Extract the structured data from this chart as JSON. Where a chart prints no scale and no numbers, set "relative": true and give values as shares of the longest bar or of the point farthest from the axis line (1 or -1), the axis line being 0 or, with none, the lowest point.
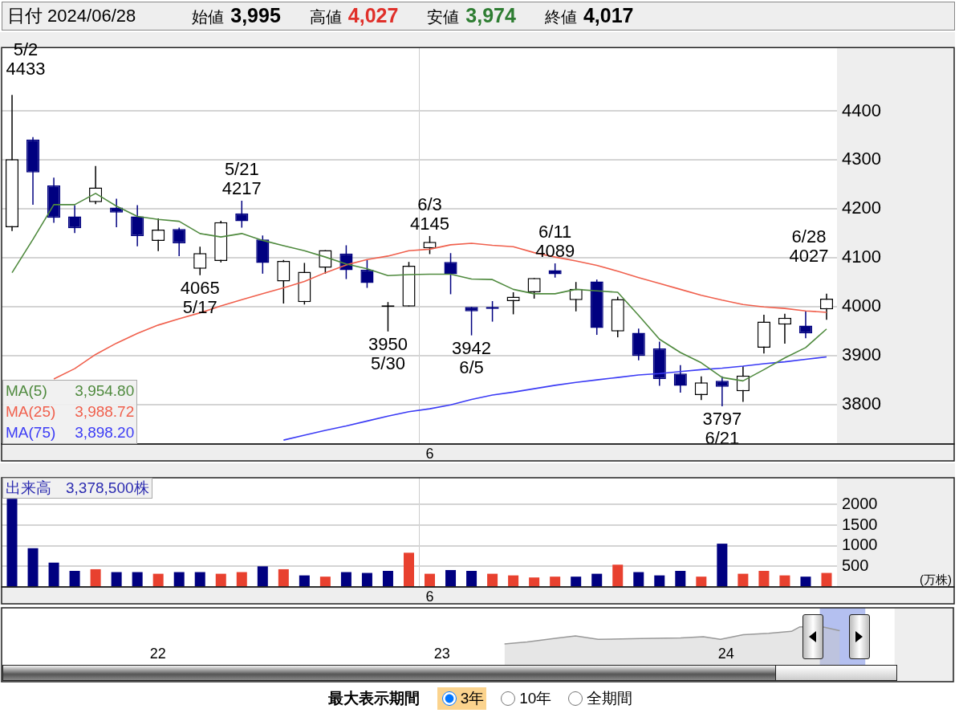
{
  "chart_data": [
    {
      "type": "candlestick",
      "title": "日付 2024/06/28",
      "annotations": [
        "始値 3,995",
        "高値 4,027",
        "安値 3,974",
        "終値 4,017",
        "3,954.80",
        "3,988.72",
        "3,898.20",
        "5/2 4433",
        "6/28 4027",
        {
          "text": "5/21 4217",
          "y": 4217
        },
        {
          "text": "6/3 4145",
          "y": 4145
        },
        {
          "text": "6/11 4089",
          "y": 4089
        },
        {
          "text": "4065 5/17",
          "y": 4065
        },
        {
          "text": "3950 5/30",
          "y": 3950
        },
        {
          "text": "3942 6/5",
          "y": 3942
        },
        {
          "text": "3797 6/21",
          "y": 3797
        }
      ],
      "categories": [
        null,
        null,
        null,
        null,
        null,
        null,
        null,
        null,
        null,
        null,
        null,
        null,
        null,
        null,
        null,
        null,
        null,
        null,
        null,
        null,
        "6",
        null,
        null,
        null,
        null,
        null,
        null,
        null,
        null,
        null,
        null,
        null,
        null,
        null,
        null,
        null,
        null,
        null,
        null,
        null
      ],
      "ohlc": [
        [
          4163,
          4433,
          4155,
          4302
        ],
        [
          4342,
          4347,
          4209,
          4275
        ],
        [
          4248,
          4264,
          4172,
          4182
        ],
        [
          4185,
          4208,
          4151,
          4161
        ],
        [
          4214,
          4288,
          4210,
          4244
        ],
        [
          4203,
          4221,
          4163,
          4193
        ],
        [
          4185,
          4208,
          4124,
          4145
        ],
        [
          4135,
          4181,
          4114,
          4158
        ],
        [
          4159,
          4162,
          4104,
          4130
        ],
        [
          4078,
          4123,
          4065,
          4110
        ],
        [
          4094,
          4176,
          4091,
          4173
        ],
        [
          4191,
          4217,
          4162,
          4175
        ],
        [
          4138,
          4146,
          4068,
          4090
        ],
        [
          4052,
          4096,
          4007,
          4094
        ],
        [
          4010,
          4090,
          4005,
          4072
        ],
        [
          4080,
          4116,
          4068,
          4116
        ],
        [
          4109,
          4126,
          4057,
          4075
        ],
        [
          4076,
          4096,
          4039,
          4049
        ],
        [
          4000,
          4010,
          3950,
          4001
        ],
        [
          4001,
          4092,
          4001,
          4084
        ],
        [
          4120,
          4145,
          4108,
          4133
        ],
        [
          4092,
          4110,
          4026,
          4067
        ],
        [
          4000,
          4000,
          3942,
          3991
        ],
        [
          4000,
          4012,
          3970,
          3996
        ],
        [
          4012,
          4030,
          3985,
          4021
        ],
        [
          4030,
          4059,
          4017,
          4059
        ],
        [
          4075,
          4089,
          4060,
          4067
        ],
        [
          4014,
          4051,
          3991,
          4037
        ],
        [
          4052,
          4056,
          3943,
          3957
        ],
        [
          3950,
          4021,
          3938,
          4016
        ],
        [
          3947,
          3956,
          3891,
          3900
        ],
        [
          3915,
          3929,
          3839,
          3853
        ],
        [
          3864,
          3881,
          3825,
          3839
        ],
        [
          3820,
          3858,
          3810,
          3846
        ],
        [
          3849,
          3858,
          3797,
          3837
        ],
        [
          3828,
          3879,
          3806,
          3860
        ],
        [
          3917,
          3984,
          3905,
          3970
        ],
        [
          3964,
          3986,
          3925,
          3978
        ],
        [
          3962,
          3991,
          3936,
          3946
        ],
        [
          3995,
          4027,
          3974,
          4017
        ]
      ],
      "colors": [
        "#000000",
        "#000080",
        "#000080",
        "#000080",
        "#000000",
        "#000080",
        "#000080",
        "#000000",
        "#000080",
        "#000000",
        "#000000",
        "#000080",
        "#000080",
        "#000000",
        "#000000",
        "#000000",
        "#000080",
        "#000080",
        "#000000",
        "#000000",
        "#000000",
        "#000080",
        "#000080",
        "#000080",
        "#000000",
        "#000000",
        "#000080",
        "#000000",
        "#000080",
        "#000000",
        "#000080",
        "#000080",
        "#000080",
        "#000000",
        "#000080",
        "#000000",
        "#000000",
        "#000000",
        "#000080",
        "#000000"
      ],
      "series": [
        {
          "type": "line",
          "name": "MA(5)",
          "color": "#4f8a3e",
          "values": [
            4070,
            4138,
            4209,
            4209,
            4232,
            4206,
            4185,
            4179,
            4175,
            4150,
            4143,
            4150,
            4136,
            4125,
            4115,
            4102,
            4088,
            4078,
            4064,
            4066,
            4067,
            4067,
            4057,
            4056,
            4036,
            4027,
            4027,
            4036,
            4033,
            4030,
            3983,
            3934,
            3907,
            3886,
            3856,
            3849,
            3872,
            3896,
            3917,
            3955
          ]
        },
        {
          "type": "line",
          "name": "MA(25)",
          "color": "#f0604d",
          "values": [
            null,
            null,
            3853,
            3874,
            3903,
            3926,
            3946,
            3963,
            3976,
            3988,
            4002,
            4015,
            4027,
            4039,
            4052,
            4070,
            4086,
            4097,
            4104,
            4115,
            4118,
            4127,
            4130,
            4126,
            4123,
            4111,
            4102,
            4094,
            4085,
            4073,
            4060,
            4048,
            4036,
            4024,
            4014,
            4005,
            4000,
            3997,
            3992,
            3989
          ]
        },
        {
          "type": "line",
          "name": "MA(75)",
          "color": "#3b3bf5",
          "values": [
            null,
            null,
            null,
            null,
            null,
            null,
            null,
            null,
            null,
            null,
            null,
            null,
            null,
            3728,
            3738,
            3748,
            3757,
            3767,
            3777,
            3786,
            3792,
            3800,
            3811,
            3820,
            3826,
            3833,
            3840,
            3846,
            3851,
            3856,
            3861,
            3864,
            3868,
            3872,
            3875,
            3879,
            3884,
            3888,
            3893,
            3898
          ]
        }
      ],
      "ylim": [
        3720,
        4530
      ],
      "yticks": [
        3800,
        3900,
        4000,
        4100,
        4200,
        4300,
        4400
      ],
      "grid": true,
      "legend": "bottom left"
    },
    {
      "type": "bar",
      "title": "出来高",
      "annotations": [
        "3,378,500株"
      ],
      "ylabel": "(万株)",
      "categories": [
        null,
        null,
        null,
        null,
        null,
        null,
        null,
        null,
        null,
        null,
        null,
        null,
        null,
        null,
        null,
        null,
        null,
        null,
        null,
        null,
        "6",
        null,
        null,
        null,
        null,
        null,
        null,
        null,
        null,
        null,
        null,
        null,
        null,
        null,
        null,
        null,
        null,
        null,
        null,
        null
      ],
      "values": [
        2140,
        940,
        590,
        390,
        430,
        360,
        360,
        320,
        360,
        360,
        320,
        360,
        500,
        430,
        280,
        250,
        360,
        340,
        390,
        830,
        320,
        410,
        390,
        320,
        280,
        230,
        250,
        250,
        320,
        540,
        360,
        280,
        390,
        250,
        1050,
        320,
        390,
        280,
        250,
        340
      ],
      "colors": [
        "#000080",
        "#000080",
        "#000080",
        "#000080",
        "#e8412f",
        "#000080",
        "#000080",
        "#e8412f",
        "#000080",
        "#000080",
        "#e8412f",
        "#e8412f",
        "#000080",
        "#e8412f",
        "#000080",
        "#e8412f",
        "#000080",
        "#000080",
        "#000080",
        "#e8412f",
        "#e8412f",
        "#000080",
        "#000080",
        "#e8412f",
        "#e8412f",
        "#e8412f",
        "#e8412f",
        "#000080",
        "#000080",
        "#e8412f",
        "#000080",
        "#000080",
        "#000080",
        "#e8412f",
        "#000080",
        "#e8412f",
        "#e8412f",
        "#e8412f",
        "#000080",
        "#e8412f"
      ],
      "ylim": [
        0,
        2650
      ],
      "yticks": [
        500,
        1000,
        1500,
        2000
      ],
      "grid": true
    },
    {
      "type": "area",
      "relative": true,
      "color": "#999999",
      "x": [
        2023.22,
        2023.3,
        2023.41,
        2023.47,
        2023.55,
        2023.7,
        2023.84,
        2023.92,
        2023.98,
        2024.06,
        2024.15,
        2024.23,
        2024.26,
        2024.34,
        2024.4
      ],
      "values": [
        0.55,
        0.6,
        0.71,
        0.76,
        0.67,
        0.69,
        0.71,
        0.74,
        0.67,
        0.79,
        0.83,
        0.88,
        1,
        1,
        0.9
      ],
      "xlim": [
        2021.45,
        2024.8
      ],
      "xticks": [
        {
          "value": 2022,
          "label": "22"
        },
        {
          "value": 2023,
          "label": "23"
        },
        {
          "value": 2024,
          "label": "24"
        }
      ],
      "bands": [
        {
          "axis": "x",
          "from": 2024.33,
          "to": 2024.49,
          "color": "#b4c0f0"
        }
      ],
      "annotations": [
        "最大表示期間",
        "3年",
        "10年",
        "全期間"
      ]
    }
  ]
}
